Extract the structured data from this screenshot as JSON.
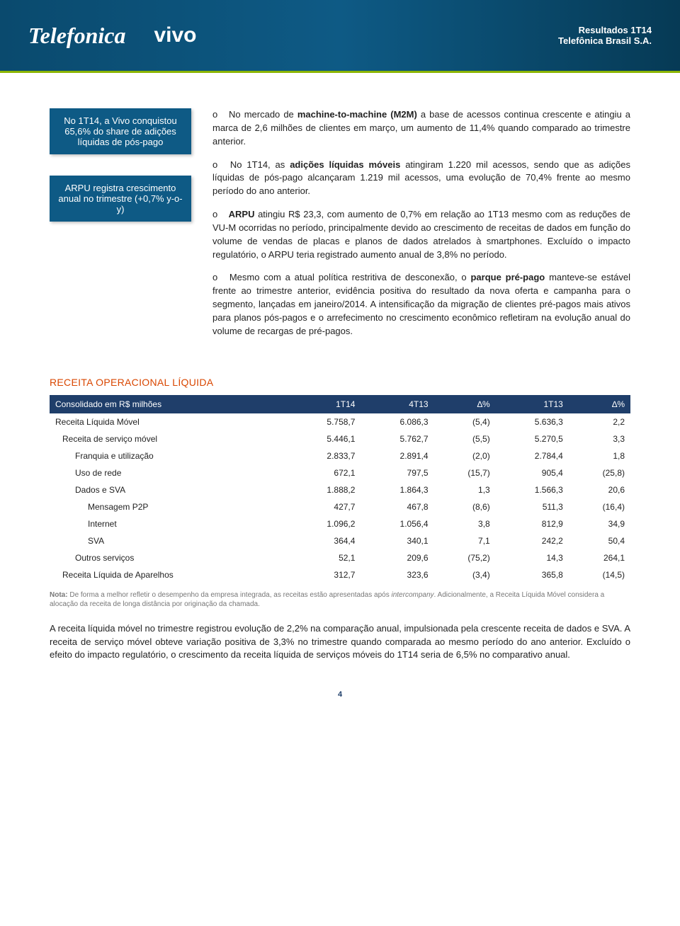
{
  "header": {
    "telefonica": "Telefonica",
    "vivo": "vivo",
    "line1": "Resultados 1T14",
    "line2": "Telefônica Brasil S.A."
  },
  "callouts": [
    "No 1T14, a Vivo conquistou 65,6% do share de adições líquidas de pós-pago",
    "ARPU registra crescimento anual no trimestre (+0,7% y-o-y)"
  ],
  "paragraphs": {
    "p1_a": "No mercado de ",
    "p1_b": "machine-to-machine (M2M)",
    "p1_c": " a base de acessos continua crescente e atingiu a marca de 2,6 milhões de clientes em março, um aumento de 11,4% quando comparado ao trimestre anterior.",
    "p2_a": "No 1T14, as ",
    "p2_b": "adições líquidas móveis",
    "p2_c": " atingiram 1.220 mil acessos, sendo que as adições líquidas de pós-pago alcançaram 1.219 mil acessos, uma evolução de 70,4% frente ao mesmo período do ano anterior.",
    "p3_a": "ARPU",
    "p3_b": " atingiu R$ 23,3, com aumento de 0,7% em relação ao 1T13 mesmo com as reduções de VU-M ocorridas no período, principalmente devido ao crescimento de receitas de dados em função do volume de vendas de placas e planos de dados atrelados à smartphones. Excluído o impacto regulatório, o ARPU teria registrado aumento anual de 3,8% no período.",
    "p4_a": "Mesmo com a atual política restritiva de desconexão, o ",
    "p4_b": "parque pré-pago",
    "p4_c": " manteve-se estável frente ao trimestre anterior, evidência positiva do resultado da nova oferta e campanha para o segmento, lançadas em janeiro/2014. A intensificação da migração de clientes pré-pagos mais ativos para planos pós-pagos e o arrefecimento no crescimento econômico refletiram na evolução anual do volume de recargas de pré-pagos."
  },
  "section_title": "RECEITA OPERACIONAL LÍQUIDA",
  "table": {
    "header": [
      "Consolidado em R$ milhões",
      "1T14",
      "4T13",
      "∆%",
      "1T13",
      "∆%"
    ],
    "rows": [
      {
        "ind": 0,
        "cells": [
          "Receita Líquida Móvel",
          "5.758,7",
          "6.086,3",
          "(5,4)",
          "5.636,3",
          "2,2"
        ]
      },
      {
        "ind": 1,
        "cells": [
          "Receita de serviço móvel",
          "5.446,1",
          "5.762,7",
          "(5,5)",
          "5.270,5",
          "3,3"
        ]
      },
      {
        "ind": 2,
        "cells": [
          "Franquia e utilização",
          "2.833,7",
          "2.891,4",
          "(2,0)",
          "2.784,4",
          "1,8"
        ]
      },
      {
        "ind": 2,
        "cells": [
          "Uso de rede",
          "672,1",
          "797,5",
          "(15,7)",
          "905,4",
          "(25,8)"
        ]
      },
      {
        "ind": 2,
        "cells": [
          "Dados e SVA",
          "1.888,2",
          "1.864,3",
          "1,3",
          "1.566,3",
          "20,6"
        ]
      },
      {
        "ind": 3,
        "cells": [
          "Mensagem P2P",
          "427,7",
          "467,8",
          "(8,6)",
          "511,3",
          "(16,4)"
        ]
      },
      {
        "ind": 3,
        "cells": [
          "Internet",
          "1.096,2",
          "1.056,4",
          "3,8",
          "812,9",
          "34,9"
        ]
      },
      {
        "ind": 3,
        "cells": [
          "SVA",
          "364,4",
          "340,1",
          "7,1",
          "242,2",
          "50,4"
        ]
      },
      {
        "ind": 2,
        "cells": [
          "Outros serviços",
          "52,1",
          "209,6",
          "(75,2)",
          "14,3",
          "264,1"
        ]
      },
      {
        "ind": 1,
        "cells": [
          "Receita Líquida de Aparelhos",
          "312,7",
          "323,6",
          "(3,4)",
          "365,8",
          "(14,5)"
        ]
      }
    ]
  },
  "note_a": "Nota:",
  "note_b": " De forma a melhor refletir o desempenho da empresa integrada, as receitas estão apresentadas após ",
  "note_c": "intercompany",
  "note_d": ". Adicionalmente, a Receita Líquida Móvel considera a alocação da receita de longa distância por originação da chamada.",
  "body_para": "A receita líquida móvel no trimestre registrou evolução de 2,2% na comparação anual, impulsionada pela crescente receita de dados e SVA. A receita de serviço móvel obteve variação positiva de 3,3% no trimestre quando comparada ao mesmo período do ano anterior. Excluído o efeito do impacto regulatório, o crescimento da receita líquida de serviços móveis do 1T14 seria de 6,5% no comparativo anual.",
  "pagenum": "4",
  "colors": {
    "header_bg": "#0e5a85",
    "callout_bg": "#0e5a85",
    "green": "#8bb500",
    "orange": "#d94600",
    "table_header": "#1f3e6a"
  }
}
